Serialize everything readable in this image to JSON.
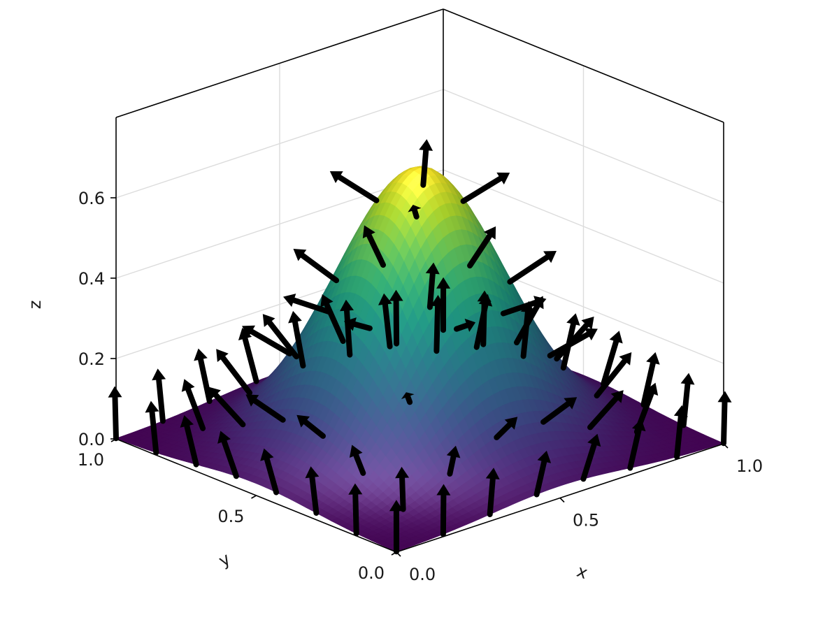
{
  "chart_data": {
    "type": "surface",
    "xlabel": "x",
    "ylabel": "y",
    "zlabel": "z",
    "xlim": [
      0,
      1
    ],
    "ylim": [
      0,
      1
    ],
    "zlim": [
      0,
      0.8
    ],
    "x_ticks": [
      "0.0",
      "0.5",
      "1.0"
    ],
    "y_ticks": [
      "0.0",
      "0.5",
      "1.0"
    ],
    "z_ticks": [
      "0.0",
      "0.2",
      "0.4",
      "0.6"
    ],
    "grid": true,
    "colormap": "viridis",
    "surface": {
      "peak_x": 0.5,
      "peak_y": 0.5,
      "peak_z": 0.68,
      "sigma": 0.2
    },
    "quiver": {
      "grid_n": 8,
      "description": "surface normal vectors"
    }
  },
  "colors": {
    "viridis": [
      "#440154",
      "#482878",
      "#3e4989",
      "#31688e",
      "#26828e",
      "#1f9e89",
      "#35b779",
      "#6ece58",
      "#b5de2b",
      "#fde725"
    ],
    "arrow": "#000000",
    "grid": "#dcdcdc",
    "frame": "#000000"
  }
}
